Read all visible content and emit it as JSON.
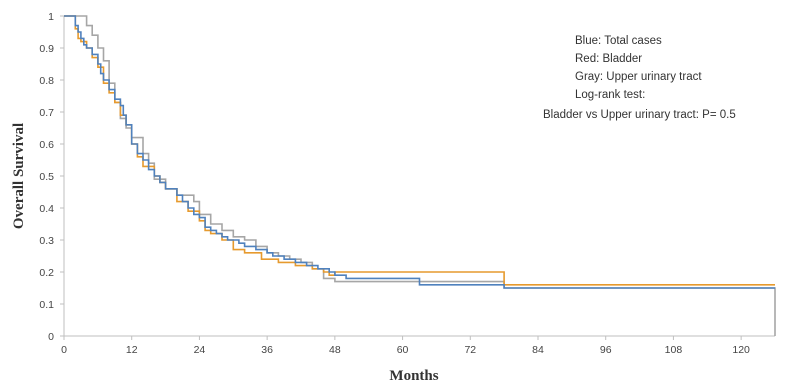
{
  "chart_data": {
    "type": "line",
    "step": true,
    "title": "",
    "xlabel": "Months",
    "ylabel": "Overall Survival",
    "xlim": [
      0,
      126
    ],
    "ylim": [
      0,
      1
    ],
    "xticks": [
      0,
      12,
      24,
      36,
      48,
      60,
      72,
      84,
      96,
      108,
      120
    ],
    "yticks": [
      0,
      0.1,
      0.2,
      0.3,
      0.4,
      0.5,
      0.6,
      0.7,
      0.8,
      0.9,
      1
    ],
    "grid": false,
    "annotations": [
      "Blue: Total  cases",
      "Red: Bladder",
      "Gray:  Upper  urinary tract",
      "Log-rank test:",
      "Bladder vs Upper urinary tract: P= 0.5"
    ],
    "series": [
      {
        "color": "#4f81bd",
        "x": [
          0,
          1,
          2,
          2.5,
          3,
          3.5,
          4,
          5,
          6,
          6.5,
          7,
          8,
          9,
          10,
          10.5,
          11,
          12,
          13,
          14,
          15,
          16,
          17,
          18,
          20,
          21,
          22,
          23,
          24,
          25,
          26,
          27,
          28,
          29,
          31,
          32,
          34,
          36,
          37,
          39,
          41,
          43,
          45,
          47,
          48,
          50,
          63,
          78,
          126
        ],
        "y": [
          1,
          1,
          0.97,
          0.95,
          0.93,
          0.91,
          0.9,
          0.88,
          0.85,
          0.82,
          0.8,
          0.77,
          0.74,
          0.72,
          0.69,
          0.66,
          0.6,
          0.57,
          0.55,
          0.52,
          0.5,
          0.48,
          0.46,
          0.44,
          0.42,
          0.4,
          0.38,
          0.37,
          0.34,
          0.33,
          0.32,
          0.31,
          0.3,
          0.29,
          0.28,
          0.27,
          0.26,
          0.25,
          0.24,
          0.23,
          0.22,
          0.21,
          0.2,
          0.19,
          0.18,
          0.16,
          0.15,
          0.15
        ]
      },
      {
        "color": "#e69a2e",
        "x": [
          0,
          1,
          2,
          2.5,
          3,
          4,
          5,
          6,
          7,
          8,
          9,
          10,
          11,
          12,
          13,
          14,
          16,
          17,
          18,
          20,
          22,
          24,
          25,
          26,
          28,
          30,
          32,
          35,
          38,
          41,
          44,
          46,
          47,
          48,
          78,
          105,
          126
        ],
        "y": [
          1,
          1,
          0.96,
          0.93,
          0.92,
          0.9,
          0.87,
          0.84,
          0.79,
          0.76,
          0.73,
          0.69,
          0.66,
          0.6,
          0.56,
          0.53,
          0.5,
          0.48,
          0.46,
          0.42,
          0.39,
          0.36,
          0.33,
          0.32,
          0.3,
          0.27,
          0.26,
          0.24,
          0.23,
          0.22,
          0.21,
          0.2,
          0.19,
          0.2,
          0.16,
          0.16,
          0.16
        ]
      },
      {
        "color": "#a6a6a6",
        "x": [
          0,
          1,
          3,
          4,
          5,
          6,
          7,
          8,
          9,
          10,
          11,
          12,
          14,
          15,
          16,
          18,
          20,
          23,
          24,
          26,
          28,
          30,
          32,
          34,
          36,
          38,
          40,
          42,
          44,
          46,
          48,
          63,
          78,
          100,
          126
        ],
        "y": [
          1,
          1,
          1,
          0.97,
          0.94,
          0.9,
          0.86,
          0.79,
          0.73,
          0.68,
          0.65,
          0.62,
          0.57,
          0.54,
          0.49,
          0.46,
          0.44,
          0.42,
          0.38,
          0.35,
          0.33,
          0.31,
          0.3,
          0.28,
          0.26,
          0.25,
          0.24,
          0.23,
          0.21,
          0.18,
          0.17,
          0.17,
          0.15,
          0.15,
          0
        ]
      }
    ]
  }
}
